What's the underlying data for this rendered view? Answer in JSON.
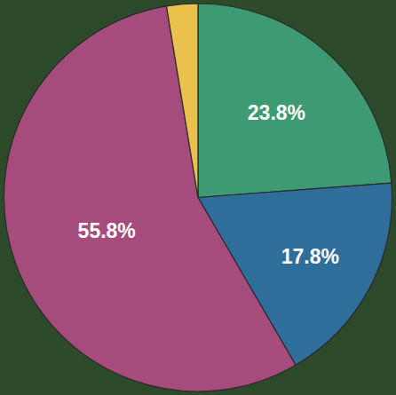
{
  "chart_data": {
    "type": "pie",
    "values": [
      23.8,
      17.8,
      55.8,
      2.6
    ],
    "value_labels": [
      "23.8%",
      "17.8%",
      "55.8%",
      null
    ],
    "colors": [
      "#3d9a73",
      "#2f6e9a",
      "#a64c7c",
      "#e9c14c"
    ],
    "data_labels": true
  }
}
